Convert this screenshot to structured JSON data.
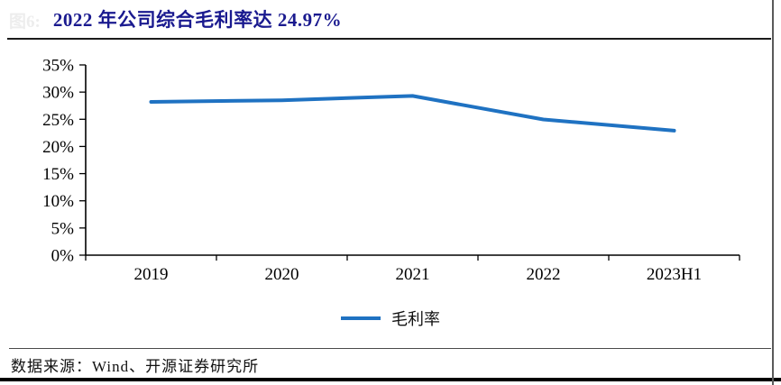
{
  "figure": {
    "number_label": "图6:",
    "title": "2022 年公司综合毛利率达 24.97%"
  },
  "chart_data": {
    "type": "line",
    "categories": [
      "2019",
      "2020",
      "2021",
      "2022",
      "2023H1"
    ],
    "series": [
      {
        "name": "毛利率",
        "values": [
          28.2,
          28.5,
          29.3,
          24.97,
          22.9
        ]
      }
    ],
    "title": "2022 年公司综合毛利率达 24.97%",
    "xlabel": "",
    "ylabel": "",
    "ylim": [
      0,
      35
    ],
    "y_tick_step": 5,
    "y_tick_labels": [
      "0%",
      "5%",
      "10%",
      "15%",
      "20%",
      "25%",
      "30%",
      "35%"
    ],
    "grid": false,
    "legend_position": "bottom",
    "line_color": "#1f72c2",
    "axis_color": "#000000"
  },
  "legend": {
    "label": "毛利率"
  },
  "footer": {
    "source": "数据来源：Wind、开源证券研究所"
  },
  "colors": {
    "title_navy": "#1a1a8f",
    "line_blue": "#1f72c2",
    "rule_dark": "#1b1b1b"
  }
}
